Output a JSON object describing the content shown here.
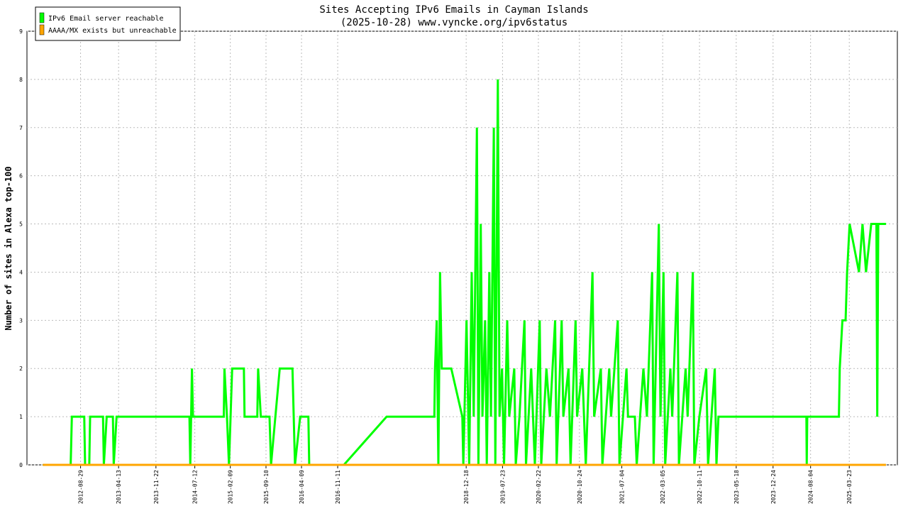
{
  "chart_data": {
    "type": "line",
    "title": "Sites Accepting IPv6 Emails in Cayman Islands",
    "subtitle": "(2025-10-28) www.vyncke.org/ipv6status",
    "y_label": "Number of sites in Alexa top-100",
    "xlim": [
      "2011-10-14",
      "2026-01-04"
    ],
    "xticks": [
      "2012-08-29",
      "2013-04-13",
      "2013-11-22",
      "2014-07-12",
      "2015-02-09",
      "2015-09-10",
      "2016-04-09",
      "2016-11-11",
      "2018-12-18",
      "2019-07-23",
      "2020-02-22",
      "2020-10-24",
      "2021-07-04",
      "2022-03-05",
      "2022-10-11",
      "2023-05-18",
      "2023-12-24",
      "2024-08-04",
      "2025-03-23"
    ],
    "ylim": [
      0,
      9
    ],
    "yticks": [
      0,
      1,
      2,
      3,
      4,
      5,
      6,
      7,
      8,
      9
    ],
    "grid": true,
    "legend": "upper left",
    "series": [
      {
        "name": "IPv6 Email server reachable",
        "color": "#00ff00",
        "x": [
          "2012-01-17",
          "2012-07-01",
          "2012-07-08",
          "2012-09-20",
          "2012-09-25",
          "2012-10-20",
          "2012-10-25",
          "2013-01-10",
          "2013-01-15",
          "2013-02-01",
          "2013-03-10",
          "2013-03-15",
          "2013-04-01",
          "2014-06-10",
          "2014-06-15",
          "2014-06-25",
          "2014-07-01",
          "2015-01-01",
          "2015-01-05",
          "2015-01-20",
          "2015-02-01",
          "2015-02-20",
          "2015-05-01",
          "2015-05-05",
          "2015-07-20",
          "2015-07-25",
          "2015-08-10",
          "2015-10-01",
          "2015-10-10",
          "2015-12-01",
          "2016-02-15",
          "2016-03-01",
          "2016-04-01",
          "2016-05-20",
          "2016-05-25",
          "2016-12-18",
          "2017-08-30",
          "2018-06-11",
          "2018-06-15",
          "2018-06-25",
          "2018-07-05",
          "2018-07-15",
          "2018-07-25",
          "2018-09-20",
          "2018-11-25",
          "2018-12-01",
          "2018-12-20",
          "2019-01-05",
          "2019-01-20",
          "2019-02-01",
          "2019-02-20",
          "2019-03-01",
          "2019-03-15",
          "2019-03-25",
          "2019-04-10",
          "2019-04-20",
          "2019-05-05",
          "2019-05-15",
          "2019-06-01",
          "2019-06-10",
          "2019-06-25",
          "2019-07-05",
          "2019-07-20",
          "2019-08-01",
          "2019-08-20",
          "2019-09-01",
          "2019-10-01",
          "2019-10-10",
          "2019-11-01",
          "2019-12-01",
          "2019-12-10",
          "2020-01-10",
          "2020-02-01",
          "2020-03-01",
          "2020-03-10",
          "2020-04-10",
          "2020-05-01",
          "2020-06-01",
          "2020-06-10",
          "2020-07-10",
          "2020-07-20",
          "2020-08-20",
          "2020-09-01",
          "2020-10-01",
          "2020-10-10",
          "2020-11-10",
          "2020-12-01",
          "2021-01-10",
          "2021-01-20",
          "2021-03-01",
          "2021-03-10",
          "2021-04-20",
          "2021-05-01",
          "2021-06-10",
          "2021-06-20",
          "2021-08-01",
          "2021-08-10",
          "2021-09-20",
          "2021-10-01",
          "2021-11-10",
          "2021-12-01",
          "2022-01-01",
          "2022-01-10",
          "2022-02-10",
          "2022-02-20",
          "2022-03-10",
          "2022-03-20",
          "2022-04-20",
          "2022-05-01",
          "2022-06-01",
          "2022-06-10",
          "2022-07-20",
          "2022-08-01",
          "2022-09-01",
          "2022-09-10",
          "2022-10-10",
          "2022-11-20",
          "2022-12-01",
          "2023-01-10",
          "2023-01-20",
          "2023-02-01",
          "2024-07-10",
          "2024-07-12",
          "2024-07-15",
          "2025-01-20",
          "2025-01-25",
          "2025-02-10",
          "2025-03-01",
          "2025-03-10",
          "2025-03-25",
          "2025-05-20",
          "2025-06-10",
          "2025-07-01",
          "2025-08-01",
          "2025-09-01",
          "2025-09-06",
          "2025-09-12",
          "2025-10-28"
        ],
        "values": [
          0,
          0,
          1,
          1,
          0,
          0,
          1,
          1,
          0,
          1,
          1,
          0,
          1,
          1,
          0,
          2,
          1,
          1,
          2,
          1,
          0,
          2,
          2,
          1,
          1,
          2,
          1,
          1,
          0,
          2,
          2,
          0,
          1,
          1,
          0,
          0,
          1,
          1,
          2,
          3,
          0,
          4,
          2,
          2,
          1,
          0,
          3,
          0,
          4,
          1,
          7,
          0,
          5,
          1,
          3,
          0,
          4,
          1,
          7,
          0,
          8,
          1,
          2,
          0,
          3,
          1,
          2,
          0,
          1,
          3,
          0,
          2,
          0,
          3,
          0,
          2,
          1,
          3,
          0,
          3,
          1,
          2,
          0,
          3,
          1,
          2,
          0,
          4,
          1,
          2,
          0,
          2,
          1,
          3,
          0,
          2,
          1,
          1,
          0,
          2,
          1,
          4,
          0,
          5,
          1,
          4,
          0,
          2,
          1,
          4,
          0,
          2,
          1,
          4,
          0,
          1,
          2,
          0,
          2,
          0,
          1,
          1,
          0,
          1,
          1,
          2,
          3,
          3,
          4,
          5,
          4,
          5,
          4,
          5,
          5,
          1,
          5,
          5
        ]
      },
      {
        "name": "AAAA/MX exists but unreachable",
        "color": "#ffa500",
        "x": [
          "2012-01-17",
          "2025-10-28"
        ],
        "values": [
          0,
          0
        ]
      }
    ]
  }
}
